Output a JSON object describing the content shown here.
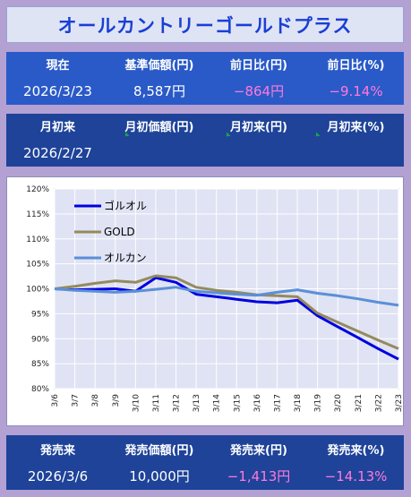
{
  "title": "オールカントリーゴールドプラス",
  "current": {
    "headers": [
      "現在",
      "基準価額(円)",
      "前日比(円)",
      "前日比(%)"
    ],
    "date": "2026/3/23",
    "nav": "8,587円",
    "change_yen": "−864円",
    "change_pct": "−9.14%"
  },
  "month": {
    "headers": [
      "月初来",
      "月初価額(円)",
      "月初来(円)",
      "月初来(%)"
    ],
    "date": "2026/2/27",
    "nav": "",
    "change_yen": "",
    "change_pct": ""
  },
  "launch": {
    "headers": [
      "発売来",
      "発売価額(円)",
      "発売来(円)",
      "発売来(%)"
    ],
    "date": "2026/3/6",
    "nav": "10,000円",
    "change_yen": "−1,413円",
    "change_pct": "−14.13%"
  },
  "chart_data": {
    "type": "line",
    "x": [
      "3/6",
      "3/7",
      "3/8",
      "3/9",
      "3/10",
      "3/11",
      "3/12",
      "3/13",
      "3/14",
      "3/15",
      "3/16",
      "3/17",
      "3/18",
      "3/19",
      "3/20",
      "3/21",
      "3/22",
      "3/23"
    ],
    "ylim": [
      80,
      120
    ],
    "yticks": [
      "80%",
      "85%",
      "90%",
      "95%",
      "100%",
      "105%",
      "110%",
      "115%",
      "120%"
    ],
    "grid": true,
    "legend_position": "top-left",
    "series": [
      {
        "name": "ゴルオル",
        "color": "#0000e0",
        "values": [
          100,
          99.8,
          99.9,
          100.0,
          99.5,
          102.2,
          101.3,
          98.9,
          98.4,
          97.9,
          97.4,
          97.2,
          97.7,
          94.6,
          92.4,
          90.2,
          88.0,
          85.9
        ]
      },
      {
        "name": "GOLD",
        "color": "#948a5e",
        "values": [
          100,
          100.5,
          101.1,
          101.6,
          101.3,
          102.6,
          102.2,
          100.3,
          99.7,
          99.3,
          98.8,
          98.6,
          98.4,
          95.1,
          93.3,
          91.5,
          89.7,
          88.0
        ]
      },
      {
        "name": "オルカン",
        "color": "#5b8fd8",
        "values": [
          100,
          99.7,
          99.5,
          99.3,
          99.5,
          99.9,
          100.3,
          99.5,
          99.2,
          98.9,
          98.7,
          99.3,
          99.8,
          99.1,
          98.6,
          98.0,
          97.3,
          96.7
        ]
      }
    ]
  }
}
